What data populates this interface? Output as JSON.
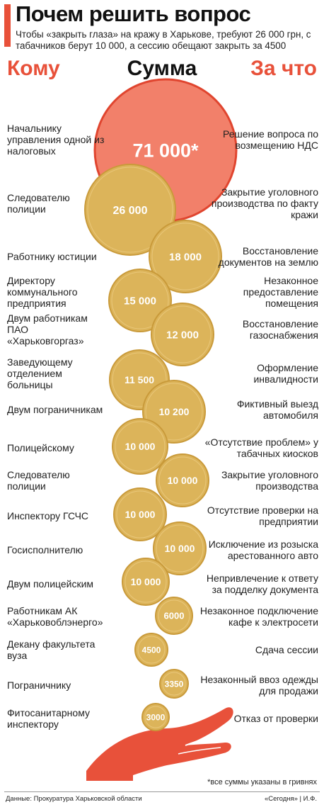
{
  "header": {
    "title": "Почем решить вопрос",
    "subtitle": "Чтобы «закрыть глаза» на кражу в Харькове, требуют 26 000 грн, с табачников берут 10 000, а сессию обещают закрыть за 4500"
  },
  "columns": {
    "who": "Кому",
    "sum": "Сумма",
    "for": "За что"
  },
  "colors": {
    "accent": "#e8513a",
    "coin": "#dcb45a",
    "coin_edge": "#c99a3a",
    "big": "#f2806a",
    "big_edge": "#e0452f"
  },
  "chart_data": {
    "type": "bubble",
    "title": "Почем решить вопрос",
    "unit": "грн",
    "rows": [
      {
        "who": "Начальнику управления одной из налоговых",
        "value": 71000,
        "label": "71 000*",
        "for": "Решение вопроса по возмещению НДС"
      },
      {
        "who": "Следователю полиции",
        "value": 26000,
        "label": "26 000",
        "for": "Закрытие уголовного производства по факту кражи"
      },
      {
        "who": "Работнику юстиции",
        "value": 18000,
        "label": "18 000",
        "for": "Восстановление документов на землю"
      },
      {
        "who": "Директору коммунального предприятия",
        "value": 15000,
        "label": "15 000",
        "for": "Незаконное предоставление помещения"
      },
      {
        "who": "Двум работникам ПАО «Харьковгоргаз»",
        "value": 12000,
        "label": "12 000",
        "for": "Восстановление газоснабжения"
      },
      {
        "who": "Заведующему отделением больницы",
        "value": 11500,
        "label": "11 500",
        "for": "Оформление инвалидности"
      },
      {
        "who": "Двум пограничникам",
        "value": 10200,
        "label": "10 200",
        "for": "Фиктивный выезд автомобиля"
      },
      {
        "who": "Полицейскому",
        "value": 10000,
        "label": "10 000",
        "for": "«Отсутствие проблем» у табачных киосков"
      },
      {
        "who": "Следователю полиции",
        "value": 10000,
        "label": "10 000",
        "for": "Закрытие уголовного производства"
      },
      {
        "who": "Инспектору ГСЧС",
        "value": 10000,
        "label": "10 000",
        "for": "Отсутствие проверки на предприятии"
      },
      {
        "who": "Госисполнителю",
        "value": 10000,
        "label": "10 000",
        "for": "Исключение из розыска арестованного авто"
      },
      {
        "who": "Двум полицейским",
        "value": 10000,
        "label": "10 000",
        "for": "Непривлечение к ответу за подделку документа"
      },
      {
        "who": "Работникам АК «Харьковоблэнерго»",
        "value": 6000,
        "label": "6000",
        "for": "Незаконное подключение кафе к электросети"
      },
      {
        "who": "Декану факультета вуза",
        "value": 4500,
        "label": "4500",
        "for": "Сдача сессии"
      },
      {
        "who": "Пограничнику",
        "value": 3350,
        "label": "3350",
        "for": "Незаконный ввоз одежды для продажи"
      },
      {
        "who": "Фитосанитарному инспектору",
        "value": 3000,
        "label": "3000",
        "for": "Отказ от проверки"
      }
    ]
  },
  "footer": {
    "note": "*все суммы указаны в гривнях",
    "source": "Данные: Прокуратура Харьковской области",
    "credit": "«Сегодня» | И.Ф."
  }
}
